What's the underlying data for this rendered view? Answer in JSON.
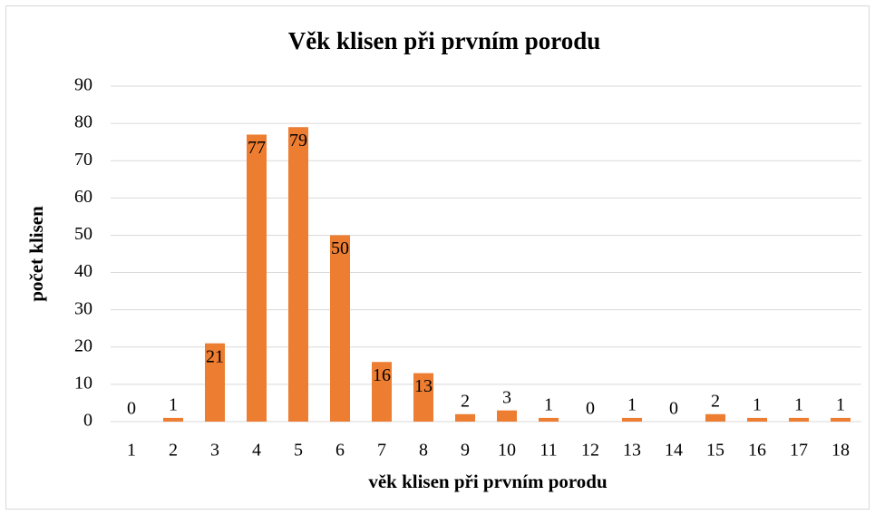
{
  "chart_data": {
    "type": "bar",
    "title": "Věk klisen při prvním porodu",
    "x_label": "věk klisen při prvním porodu",
    "y_label": "počet klisen",
    "categories": [
      "1",
      "2",
      "3",
      "4",
      "5",
      "6",
      "7",
      "8",
      "9",
      "10",
      "11",
      "12",
      "13",
      "14",
      "15",
      "16",
      "17",
      "18"
    ],
    "values": [
      0,
      1,
      21,
      77,
      79,
      50,
      16,
      13,
      2,
      3,
      1,
      0,
      1,
      0,
      2,
      1,
      1,
      1
    ],
    "color": "#ed7d31",
    "ylim": [
      0,
      90
    ],
    "yticks": [
      0,
      10,
      20,
      30,
      40,
      50,
      60,
      70,
      80,
      90
    ],
    "grid": true
  }
}
